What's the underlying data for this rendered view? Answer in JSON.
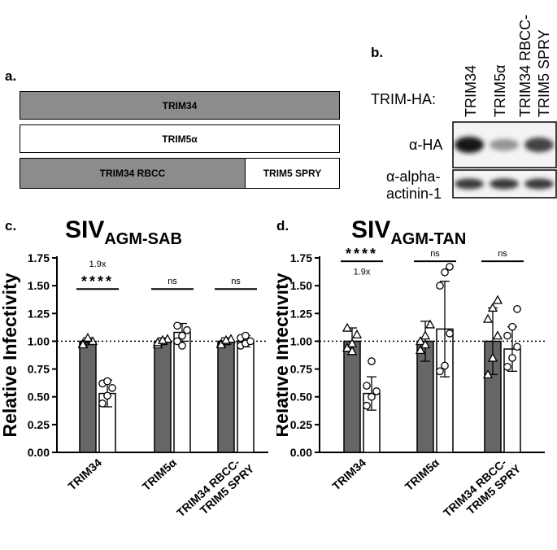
{
  "panel_a": {
    "letter": "a.",
    "constructs": [
      {
        "label": "TRIM34"
      },
      {
        "label": "TRIM5α"
      },
      {
        "label": "TRIM34 RBCC"
      },
      {
        "label": "TRIM5 SPRY"
      }
    ]
  },
  "panel_b": {
    "letter": "b.",
    "row_header": "TRIM-HA:",
    "lanes": [
      "TRIM34",
      "TRIM5α",
      "TRIM34 RBCC-",
      "TRIM5 SPRY"
    ],
    "blots": [
      {
        "label": "α-HA",
        "intensity": [
          1.0,
          0.45,
          0.8
        ]
      },
      {
        "label_line1": "α-alpha-",
        "label_line2": "actinin-1",
        "intensity": [
          0.85,
          0.85,
          0.85
        ]
      }
    ]
  },
  "chart_data": [
    {
      "type": "bar",
      "panel_letter": "c.",
      "title_main": "SIV",
      "title_sub": "AGM-SAB",
      "ylabel": "Relative Infectivity",
      "ylim": [
        0,
        1.75
      ],
      "yticks": [
        "0.00",
        "0.25",
        "0.50",
        "0.75",
        "1.00",
        "1.25",
        "1.50",
        "1.75"
      ],
      "categories": [
        "TRIM34",
        "TRIM5α",
        "TRIM34 RBCC-\nTRIM5 SPRY"
      ],
      "category_line1": [
        "TRIM34",
        "TRIM5α",
        "TRIM34 RBCC-"
      ],
      "category_line2": [
        "",
        "",
        "TRIM5 SPRY"
      ],
      "reference_line": 1.0,
      "series": [
        {
          "fill": "#666666",
          "values": [
            1.0,
            1.0,
            1.0
          ],
          "error": [
            0.03,
            0.03,
            0.03
          ]
        },
        {
          "fill": "#ffffff",
          "values": [
            0.53,
            1.08,
            1.0
          ],
          "error": [
            0.12,
            0.08,
            0.05
          ]
        }
      ],
      "points": [
        {
          "marker": "triangle",
          "values": [
            [
              0.98,
              1.02,
              1.0,
              0.97,
              1.03
            ],
            [
              0.97,
              1.0,
              1.02,
              0.99,
              1.01
            ],
            [
              0.98,
              1.0,
              1.02,
              0.97,
              1.01
            ]
          ]
        },
        {
          "marker": "circle",
          "values": [
            [
              0.44,
              0.51,
              0.58,
              0.62,
              0.64
            ],
            [
              1.0,
              1.05,
              1.1,
              1.14,
              0.96
            ],
            [
              0.96,
              0.98,
              1.0,
              1.03,
              1.05
            ]
          ]
        }
      ],
      "significance": [
        "****",
        "ns",
        "ns"
      ],
      "sig_level": 1.47,
      "fold_change": {
        "group": 0,
        "text": "1.9x",
        "level": 1.67
      }
    },
    {
      "type": "bar",
      "panel_letter": "d.",
      "title_main": "SIV",
      "title_sub": "AGM-TAN",
      "ylabel": "Relative Infectivity",
      "ylim": [
        0,
        1.75
      ],
      "yticks": [
        "0.00",
        "0.25",
        "0.50",
        "0.75",
        "1.00",
        "1.25",
        "1.50",
        "1.75"
      ],
      "categories": [
        "TRIM34",
        "TRIM5α",
        "TRIM34 RBCC-\nTRIM5 SPRY"
      ],
      "category_line1": [
        "TRIM34",
        "TRIM5α",
        "TRIM34 RBCC-"
      ],
      "category_line2": [
        "",
        "",
        "TRIM5 SPRY"
      ],
      "reference_line": 1.0,
      "series": [
        {
          "fill": "#666666",
          "values": [
            1.0,
            1.0,
            1.0
          ],
          "error": [
            0.12,
            0.18,
            0.3
          ]
        },
        {
          "fill": "#ffffff",
          "values": [
            0.53,
            1.11,
            0.93
          ],
          "error": [
            0.15,
            0.43,
            0.2
          ]
        }
      ],
      "points": [
        {
          "marker": "triangle",
          "values": [
            [
              0.94,
              0.98,
              1.06,
              1.12,
              0.91
            ],
            [
              0.92,
              1.05,
              1.15,
              1.0,
              0.97
            ],
            [
              0.7,
              0.85,
              1.05,
              1.2,
              1.3,
              1.37
            ]
          ]
        },
        {
          "marker": "circle",
          "values": [
            [
              0.42,
              0.5,
              0.55,
              0.6,
              0.82
            ],
            [
              0.73,
              0.78,
              1.07,
              1.5,
              1.62,
              1.67
            ],
            [
              0.77,
              0.85,
              0.95,
              1.05,
              1.13,
              1.29
            ]
          ]
        }
      ],
      "significance": [
        "****",
        "ns",
        "ns"
      ],
      "sig_level": 1.72,
      "fold_change": {
        "group": 0,
        "text": "1.9x",
        "level": 1.6
      }
    }
  ]
}
